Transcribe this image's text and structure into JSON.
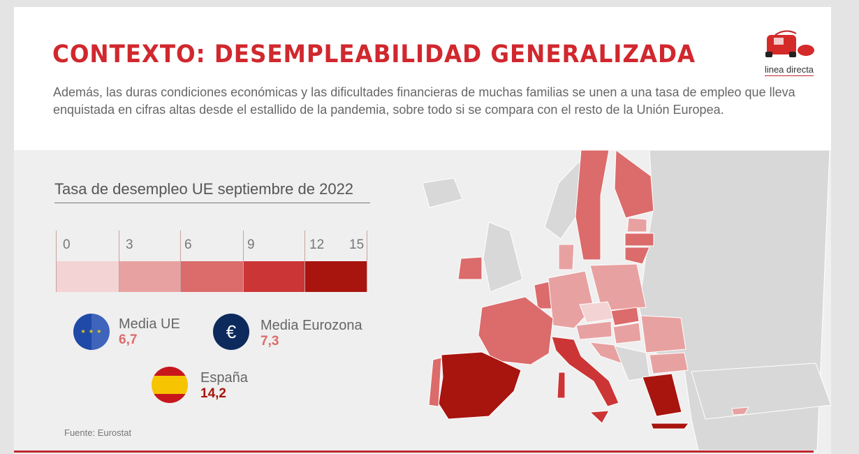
{
  "header": {
    "title": "CONTEXTO: DESEMPLEABILIDAD GENERALIZADA",
    "intro": "Además, las duras condiciones económicas y las dificultades financieras de muchas familias se unen a una tasa de empleo que lleva enquistada en cifras altas desde el estallido de la pandemia, sobre todo si se compara con el resto de la Unión Europea.",
    "logo_text": "linea directa"
  },
  "legend": {
    "title": "Tasa de desempleo UE septiembre de 2022",
    "ticks": [
      "0",
      "3",
      "6",
      "9",
      "12",
      "15"
    ],
    "colors": [
      "#f3d3d4",
      "#e8a1a1",
      "#dc6b6b",
      "#cc3535",
      "#a8140e"
    ]
  },
  "stats": [
    {
      "label": "Media UE",
      "value": "6,7",
      "color": "#dc6b6b",
      "icon": "eu-flag-icon"
    },
    {
      "label": "Media Eurozona",
      "value": "7,3",
      "color": "#dc6b6b",
      "icon": "euro-icon"
    },
    {
      "label": "España",
      "value": "14,2",
      "color": "#a8140e",
      "icon": "spain-flag-icon"
    }
  ],
  "source": "Fuente: Eurostat",
  "colors": {
    "accent": "#d0282e",
    "no_data": "#d8d8d8"
  }
}
